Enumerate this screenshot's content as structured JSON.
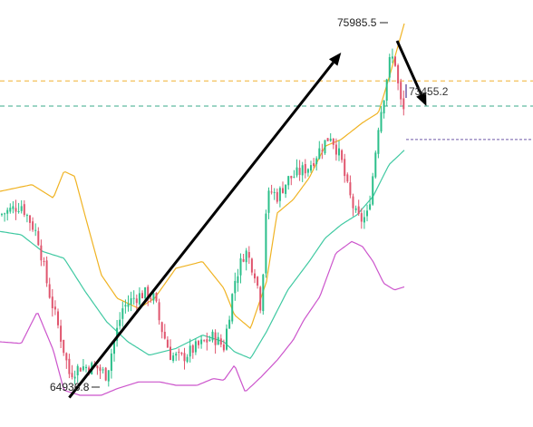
{
  "chart_data": {
    "type": "candlestick",
    "title": "",
    "xlabel": "",
    "ylabel": "",
    "ylim": [
      64400,
      76600
    ],
    "colors": {
      "up": "#2bbf8a",
      "down": "#e0556e",
      "upper_band": "#f0b323",
      "middle_band": "#40c9a2",
      "lower_band": "#cc55cc",
      "arrow": "#000000",
      "hline_orange": "#f0b030",
      "hline_green": "#3aa88a",
      "hline_purple": "#6f5aa8"
    },
    "annotations": {
      "low_label": "64936.8",
      "high_label": "75985.5",
      "current_label": "73455.2"
    },
    "reference_lines": {
      "orange_dashed": 74450,
      "green_dashed": 73700,
      "purple_dashed": 72700
    },
    "arrows": [
      {
        "from": {
          "x": 0.13,
          "y": 64980
        },
        "to": {
          "x": 0.64,
          "y": 75300
        },
        "label": "trend_up"
      },
      {
        "from": {
          "x": 0.745,
          "y": 75650
        },
        "to": {
          "x": 0.8,
          "y": 73700
        },
        "label": "pullback"
      }
    ],
    "bands_anchors": {
      "upper": [
        [
          0,
          71150
        ],
        [
          0.06,
          71350
        ],
        [
          0.1,
          70950
        ],
        [
          0.12,
          71750
        ],
        [
          0.14,
          71600
        ],
        [
          0.16,
          70400
        ],
        [
          0.19,
          68650
        ],
        [
          0.22,
          67950
        ],
        [
          0.26,
          67650
        ],
        [
          0.29,
          67950
        ],
        [
          0.33,
          68850
        ],
        [
          0.38,
          69050
        ],
        [
          0.42,
          68250
        ],
        [
          0.44,
          67450
        ],
        [
          0.47,
          67050
        ],
        [
          0.5,
          68450
        ],
        [
          0.52,
          70500
        ],
        [
          0.55,
          70900
        ],
        [
          0.58,
          71550
        ],
        [
          0.61,
          72500
        ],
        [
          0.64,
          72700
        ],
        [
          0.68,
          73200
        ],
        [
          0.71,
          73500
        ],
        [
          0.73,
          74550
        ],
        [
          0.76,
          76250
        ]
      ],
      "middle": [
        [
          0,
          69950
        ],
        [
          0.04,
          69850
        ],
        [
          0.08,
          69350
        ],
        [
          0.12,
          69150
        ],
        [
          0.16,
          68150
        ],
        [
          0.2,
          67250
        ],
        [
          0.24,
          66650
        ],
        [
          0.28,
          66250
        ],
        [
          0.33,
          66450
        ],
        [
          0.38,
          66850
        ],
        [
          0.42,
          66650
        ],
        [
          0.44,
          66350
        ],
        [
          0.47,
          66150
        ],
        [
          0.5,
          66950
        ],
        [
          0.54,
          68200
        ],
        [
          0.58,
          69050
        ],
        [
          0.61,
          69750
        ],
        [
          0.64,
          70150
        ],
        [
          0.67,
          70450
        ],
        [
          0.7,
          71000
        ],
        [
          0.73,
          71950
        ],
        [
          0.76,
          72400
        ]
      ],
      "lower": [
        [
          0,
          66650
        ],
        [
          0.04,
          66600
        ],
        [
          0.07,
          67550
        ],
        [
          0.1,
          66400
        ],
        [
          0.12,
          65200
        ],
        [
          0.15,
          65050
        ],
        [
          0.19,
          65050
        ],
        [
          0.22,
          65250
        ],
        [
          0.26,
          65450
        ],
        [
          0.3,
          65450
        ],
        [
          0.33,
          65350
        ],
        [
          0.37,
          65350
        ],
        [
          0.4,
          65550
        ],
        [
          0.42,
          65500
        ],
        [
          0.44,
          65950
        ],
        [
          0.46,
          65150
        ],
        [
          0.49,
          65600
        ],
        [
          0.52,
          66100
        ],
        [
          0.55,
          66700
        ],
        [
          0.57,
          67300
        ],
        [
          0.6,
          68000
        ],
        [
          0.63,
          69300
        ],
        [
          0.66,
          69650
        ],
        [
          0.68,
          69500
        ],
        [
          0.7,
          69050
        ],
        [
          0.72,
          68400
        ],
        [
          0.74,
          68200
        ],
        [
          0.76,
          68300
        ]
      ]
    },
    "candle_anchors": [
      [
        0,
        70450
      ],
      [
        0.04,
        70750
      ],
      [
        0.07,
        69850
      ],
      [
        0.09,
        68250
      ],
      [
        0.11,
        67050
      ],
      [
        0.13,
        65700
      ],
      [
        0.15,
        65900
      ],
      [
        0.18,
        65900
      ],
      [
        0.2,
        65650
      ],
      [
        0.21,
        66400
      ],
      [
        0.23,
        67650
      ],
      [
        0.25,
        67950
      ],
      [
        0.27,
        68100
      ],
      [
        0.29,
        67950
      ],
      [
        0.3,
        67200
      ],
      [
        0.32,
        66250
      ],
      [
        0.34,
        66150
      ],
      [
        0.36,
        66400
      ],
      [
        0.38,
        66600
      ],
      [
        0.4,
        66800
      ],
      [
        0.42,
        66500
      ],
      [
        0.44,
        68450
      ],
      [
        0.46,
        69400
      ],
      [
        0.48,
        68650
      ],
      [
        0.49,
        67600
      ],
      [
        0.5,
        70900
      ],
      [
        0.51,
        71150
      ],
      [
        0.52,
        71000
      ],
      [
        0.54,
        71500
      ],
      [
        0.56,
        71700
      ],
      [
        0.58,
        71900
      ],
      [
        0.6,
        72400
      ],
      [
        0.62,
        72850
      ],
      [
        0.64,
        72100
      ],
      [
        0.65,
        71350
      ],
      [
        0.66,
        70800
      ],
      [
        0.67,
        70350
      ],
      [
        0.68,
        70300
      ],
      [
        0.69,
        70450
      ],
      [
        0.7,
        71700
      ],
      [
        0.71,
        73150
      ],
      [
        0.72,
        74000
      ],
      [
        0.73,
        75000
      ],
      [
        0.74,
        75200
      ],
      [
        0.75,
        73900
      ],
      [
        0.76,
        73455
      ]
    ]
  }
}
